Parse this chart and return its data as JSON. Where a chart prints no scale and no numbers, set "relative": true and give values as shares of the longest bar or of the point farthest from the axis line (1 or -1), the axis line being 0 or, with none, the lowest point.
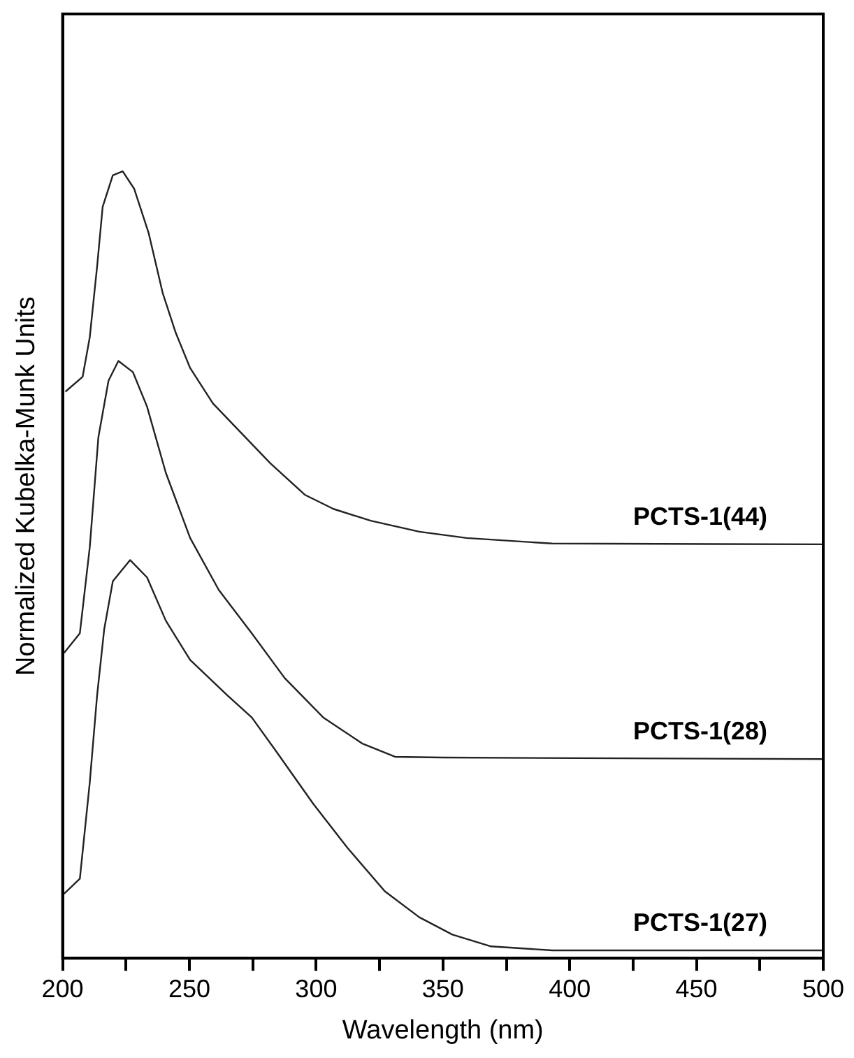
{
  "chart_data": {
    "type": "line",
    "relative": true,
    "xlabel": "Wavelength (nm)",
    "ylabel": "Normalized Kubelka-Munk Units",
    "tick_labels": "x",
    "marker": "none",
    "line_style": "solid",
    "legend": false,
    "xlim": [
      200,
      500
    ],
    "xticks": [
      200,
      {
        "value": 225,
        "label": null
      },
      250,
      {
        "value": 275,
        "label": null
      },
      300,
      {
        "value": 325,
        "label": null
      },
      350,
      {
        "value": 375,
        "label": null
      },
      400,
      {
        "value": 425,
        "label": null
      },
      450,
      {
        "value": 475,
        "label": null
      },
      500
    ],
    "series": [
      {
        "name": "PCTS-1(44)",
        "color": "#222222",
        "x": [
          201.1,
          207.9,
          210.7,
          213.6,
          215.8,
          219.8,
          223.7,
          228.2,
          233.9,
          239.5,
          244.6,
          250.3,
          259.3,
          270.6,
          281.9,
          295.5,
          306.8,
          321.5,
          340.7,
          359.3,
          393,
          500
        ],
        "values": [
          0.72,
          0.739,
          0.789,
          0.879,
          0.955,
          0.995,
          1,
          0.978,
          0.922,
          0.845,
          0.795,
          0.75,
          0.705,
          0.667,
          0.629,
          0.589,
          0.571,
          0.556,
          0.542,
          0.534,
          0.527,
          0.526
        ]
      },
      {
        "name": "PCTS-1(28)",
        "color": "#222222",
        "x": [
          200.6,
          206.8,
          210.7,
          214.1,
          218.1,
          222,
          227.7,
          233.3,
          240.7,
          250.3,
          261.6,
          274.6,
          287.6,
          302.8,
          318.1,
          331.1,
          349.7,
          500
        ],
        "values": [
          0.388,
          0.413,
          0.522,
          0.662,
          0.734,
          0.759,
          0.745,
          0.701,
          0.617,
          0.534,
          0.468,
          0.413,
          0.356,
          0.306,
          0.273,
          0.256,
          0.255,
          0.253
        ]
      },
      {
        "name": "PCTS-1(27)",
        "color": "#222222",
        "x": [
          200.6,
          206.8,
          210.7,
          213.6,
          216.4,
          219.8,
          226.6,
          233.3,
          240.7,
          250.3,
          265,
          274.6,
          284.2,
          298.9,
          312.4,
          327.1,
          340.7,
          353.7,
          369,
          393.2,
          500
        ],
        "values": [
          0.082,
          0.101,
          0.223,
          0.334,
          0.418,
          0.479,
          0.506,
          0.484,
          0.429,
          0.379,
          0.334,
          0.306,
          0.263,
          0.196,
          0.14,
          0.085,
          0.052,
          0.03,
          0.015,
          0.01,
          0.01
        ]
      }
    ]
  }
}
